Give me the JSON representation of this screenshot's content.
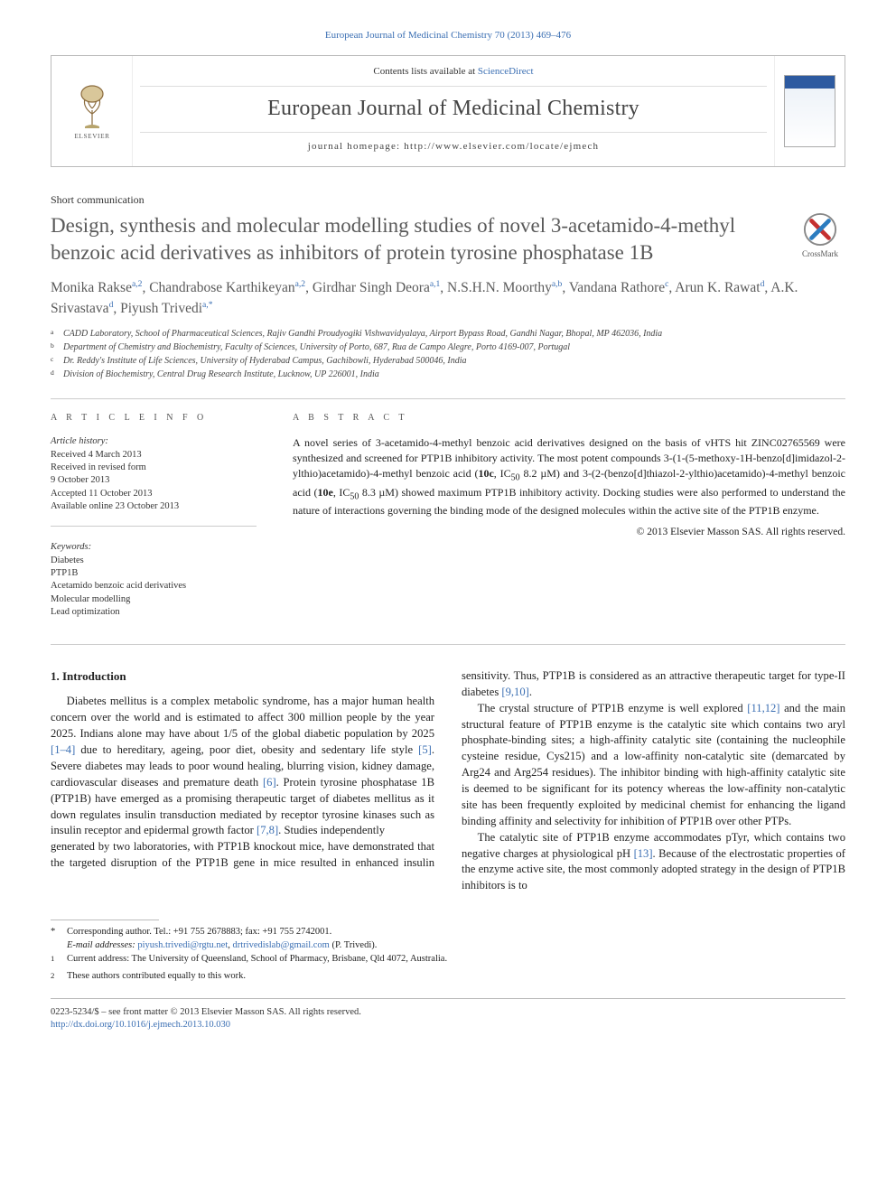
{
  "citation": "European Journal of Medicinal Chemistry 70 (2013) 469–476",
  "masthead": {
    "contents_prefix": "Contents lists available at ",
    "contents_link": "ScienceDirect",
    "journal": "European Journal of Medicinal Chemistry",
    "homepage_prefix": "journal homepage: ",
    "homepage_url": "http://www.elsevier.com/locate/ejmech",
    "elsevier_word": "ELSEVIER"
  },
  "article_type": "Short communication",
  "title": "Design, synthesis and molecular modelling studies of novel 3-acetamido-4-methyl benzoic acid derivatives as inhibitors of protein tyrosine phosphatase 1B",
  "crossmark": "CrossMark",
  "authors_html": "Monika Rakse<span class='sup'>a,2</span>, Chandrabose Karthikeyan<span class='sup'>a,2</span>, Girdhar Singh Deora<span class='sup'>a,1</span>, N.S.H.N. Moorthy<span class='sup'>a,b</span>, Vandana Rathore<span class='sup'>c</span>, Arun K. Rawat<span class='sup'>d</span>, A.K. Srivastava<span class='sup'>d</span>, Piyush Trivedi<span class='sup'>a,</span><span class='sup'>*</span>",
  "affiliations": [
    {
      "tag": "a",
      "text": "CADD Laboratory, School of Pharmaceutical Sciences, Rajiv Gandhi Proudyogiki Vishwavidyalaya, Airport Bypass Road, Gandhi Nagar, Bhopal, MP 462036, India"
    },
    {
      "tag": "b",
      "text": "Department of Chemistry and Biochemistry, Faculty of Sciences, University of Porto, 687, Rua de Campo Alegre, Porto 4169-007, Portugal"
    },
    {
      "tag": "c",
      "text": "Dr. Reddy's Institute of Life Sciences, University of Hyderabad Campus, Gachibowli, Hyderabad 500046, India"
    },
    {
      "tag": "d",
      "text": "Division of Biochemistry, Central Drug Research Institute, Lucknow, UP 226001, India"
    }
  ],
  "info": {
    "head_left": "A R T I C L E   I N F O",
    "head_right": "A B S T R A C T",
    "history_head": "Article history:",
    "history": [
      "Received 4 March 2013",
      "Received in revised form",
      "9 October 2013",
      "Accepted 11 October 2013",
      "Available online 23 October 2013"
    ],
    "keywords_head": "Keywords:",
    "keywords": [
      "Diabetes",
      "PTP1B",
      "Acetamido benzoic acid derivatives",
      "Molecular modelling",
      "Lead optimization"
    ]
  },
  "abstract_html": "A novel series of 3-acetamido-4-methyl benzoic acid derivatives designed on the basis of vHTS hit ZINC02765569 were synthesized and screened for PTP1B inhibitory activity. The most potent compounds 3-(1-(5-methoxy-1H-benzo[d]imidazol-2-ylthio)acetamido)-4-methyl benzoic acid (<b>10c</b>, IC<sub>50</sub> 8.2 µM) and 3-(2-(benzo[d]thiazol-2-ylthio)acetamido)-4-methyl benzoic acid (<b>10e</b>, IC<sub>50</sub> 8.3 µM) showed maximum PTP1B inhibitory activity. Docking studies were also performed to understand the nature of interactions governing the binding mode of the designed molecules within the active site of the PTP1B enzyme.",
  "copyright": "© 2013 Elsevier Masson SAS. All rights reserved.",
  "section_heading": "1.  Introduction",
  "col1_html": "Diabetes mellitus is a complex metabolic syndrome, has a major human health concern over the world and is estimated to affect 300 million people by the year 2025. Indians alone may have about 1/5 of the global diabetic population by 2025 <a href='#'>[1–4]</a> due to hereditary, ageing, poor diet, obesity and sedentary life style <a href='#'>[5]</a>. Severe diabetes may leads to poor wound healing, blurring vision, kidney damage, cardiovascular diseases and premature death <a href='#'>[6]</a>. Protein tyrosine phosphatase 1B (PTP1B) have emerged as a promising therapeutic target of diabetes mellitus as it down regulates insulin transduction mediated by receptor tyrosine kinases such as insulin receptor and epidermal growth factor <a href='#'>[7,8]</a>. Studies independently",
  "col2a_html": "generated by two laboratories, with PTP1B knockout mice, have demonstrated that the targeted disruption of the PTP1B gene in mice resulted in enhanced insulin sensitivity. Thus, PTP1B is considered as an attractive therapeutic target for type-II diabetes <a href='#'>[9,10]</a>.",
  "col2b_html": "The crystal structure of PTP1B enzyme is well explored <a href='#'>[11,12]</a> and the main structural feature of PTP1B enzyme is the catalytic site which contains two aryl phosphate-binding sites; a high-affinity catalytic site (containing the nucleophile cysteine residue, Cys215) and a low-affinity non-catalytic site (demarcated by Arg24 and Arg254 residues). The inhibitor binding with high-affinity catalytic site is deemed to be significant for its potency whereas the low-affinity non-catalytic site has been frequently exploited by medicinal chemist for enhancing the ligand binding affinity and selectivity for inhibition of PTP1B over other PTPs.",
  "col2c_html": "The catalytic site of PTP1B enzyme accommodates pTyr, which contains two negative charges at physiological pH <a href='#'>[13]</a>. Because of the electrostatic properties of the enzyme active site, the most commonly adopted strategy in the design of PTP1B inhibitors is to",
  "footnotes": {
    "corr": "Corresponding author. Tel.: +91 755 2678883; fax: +91 755 2742001.",
    "email_label": "E-mail addresses:",
    "email1": "piyush.trivedi@rgtu.net",
    "email_sep": ", ",
    "email2": "drtrivedislab@gmail.com",
    "email_tail": " (P. Trivedi).",
    "n1": "Current address: The University of Queensland, School of Pharmacy, Brisbane, Qld 4072, Australia.",
    "n2": "These authors contributed equally to this work."
  },
  "footer": {
    "line1": "0223-5234/$ – see front matter © 2013 Elsevier Masson SAS. All rights reserved.",
    "doi": "http://dx.doi.org/10.1016/j.ejmech.2013.10.030"
  },
  "colors": {
    "link": "#3b6fb3",
    "title_gray": "#5a5a5a",
    "elsevier_orange": "#ff7a00"
  }
}
